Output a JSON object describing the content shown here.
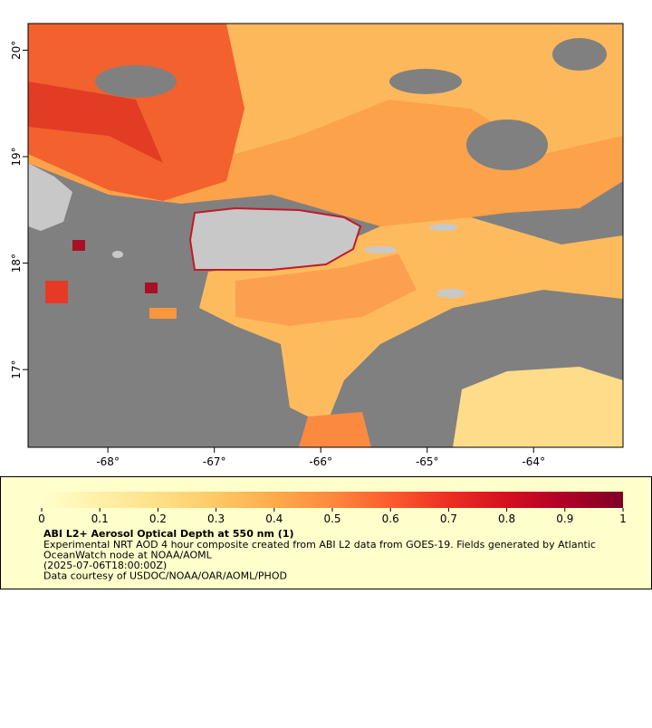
{
  "map": {
    "xlim": [
      -68.75,
      -63.16
    ],
    "ylim": [
      16.27,
      20.25
    ],
    "xticks": [
      {
        "value": -68,
        "label": "-68°"
      },
      {
        "value": -67,
        "label": "-67°"
      },
      {
        "value": -66,
        "label": "-66°"
      },
      {
        "value": -65,
        "label": "-65°"
      },
      {
        "value": -64,
        "label": "-64°"
      }
    ],
    "yticks": [
      {
        "value": 17,
        "label": "17°"
      },
      {
        "value": 18,
        "label": "18°"
      },
      {
        "value": 19,
        "label": "19°"
      },
      {
        "value": 20,
        "label": "20°"
      }
    ]
  },
  "colorbar": {
    "range": [
      0,
      1
    ],
    "ticks": [
      0,
      0.1,
      0.2,
      0.3,
      0.4,
      0.5,
      0.6,
      0.7,
      0.8,
      0.9,
      1
    ],
    "colors": [
      "#ffffcc",
      "#fff0a8",
      "#fee087",
      "#fec965",
      "#feab4b",
      "#fd893c",
      "#fc5b2e",
      "#ed2e21",
      "#d41020",
      "#b00026",
      "#800026"
    ]
  },
  "caption": {
    "title": "ABI L2+ Aerosol Optical Depth at 550 nm (1)",
    "lines": [
      "Experimental NRT AOD 4 hour composite created from ABI L2 data from GOES-19. Fields generated by Atlantic",
      "OceanWatch node at NOAA/AOML",
      "(2025-07-06T18:00:00Z)",
      "Data courtesy of USDOC/NOAA/OAR/AOML/PHOD"
    ]
  }
}
